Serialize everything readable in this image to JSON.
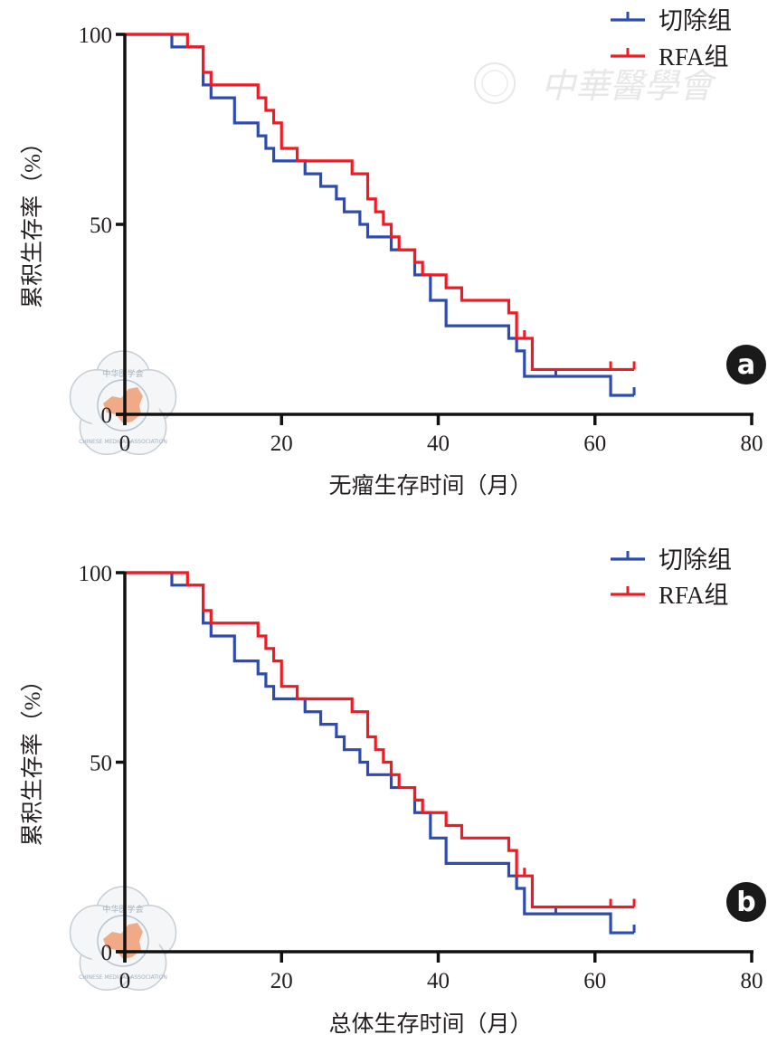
{
  "watermark": {
    "text": "中華醫學會",
    "seal_text_cn": "中华医学会",
    "seal_text_en": "CHINESE MEDICAL ASSOCIATION"
  },
  "colors": {
    "resection": "#2e4bb0",
    "rfa": "#ed1c24",
    "axis": "#111111",
    "badge": "#1a1a1a",
    "seal_map": "#f0a27a"
  },
  "chart_data": [
    {
      "type": "line",
      "subtype": "kaplan-meier",
      "panel_label": "a",
      "title": "",
      "xlabel": "无瘤生存时间（月）",
      "ylabel": "累积生存率（%）",
      "xlim": [
        0,
        80
      ],
      "ylim": [
        0,
        100
      ],
      "xticks": [
        0,
        20,
        40,
        60,
        80
      ],
      "xtick_labels": [
        "0",
        "20",
        "40",
        "60",
        "80"
      ],
      "yticks": [
        0,
        50,
        100
      ],
      "ytick_labels": [
        "0",
        "50",
        "100"
      ],
      "grid": false,
      "legend_position": "top-right",
      "series": [
        {
          "name": "切除组",
          "color": "#2e4bb0",
          "steps": [
            [
              0,
              100
            ],
            [
              6,
              96.7
            ],
            [
              10,
              86.7
            ],
            [
              11,
              83.3
            ],
            [
              14,
              76.7
            ],
            [
              17,
              73.3
            ],
            [
              18,
              70
            ],
            [
              19,
              66.7
            ],
            [
              23,
              63.3
            ],
            [
              25,
              60
            ],
            [
              27,
              56.7
            ],
            [
              28,
              53.3
            ],
            [
              30,
              50
            ],
            [
              31,
              46.7
            ],
            [
              34,
              43.3
            ],
            [
              37,
              36.7
            ],
            [
              39,
              30
            ],
            [
              41,
              23.3
            ],
            [
              49,
              20
            ],
            [
              50,
              16.7
            ],
            [
              51,
              10
            ],
            [
              62,
              5
            ]
          ],
          "end_time": 65,
          "censored": [
            55,
            65
          ]
        },
        {
          "name": "RFA组",
          "color": "#ed1c24",
          "steps": [
            [
              0,
              100
            ],
            [
              8,
              96.7
            ],
            [
              10,
              90
            ],
            [
              11,
              86.7
            ],
            [
              17,
              83.3
            ],
            [
              18,
              80
            ],
            [
              19,
              76.7
            ],
            [
              20,
              70
            ],
            [
              22,
              66.7
            ],
            [
              29,
              63.3
            ],
            [
              31,
              56.7
            ],
            [
              32,
              53.3
            ],
            [
              33,
              50
            ],
            [
              34,
              46.7
            ],
            [
              35,
              43.3
            ],
            [
              37,
              40
            ],
            [
              38,
              36.7
            ],
            [
              41,
              33.3
            ],
            [
              43,
              30
            ],
            [
              49,
              26.7
            ],
            [
              50,
              20
            ],
            [
              52,
              11.8
            ]
          ],
          "end_time": 65,
          "censored": [
            51,
            62,
            65
          ]
        }
      ]
    },
    {
      "type": "line",
      "subtype": "kaplan-meier",
      "panel_label": "b",
      "title": "",
      "xlabel": "总体生存时间（月）",
      "ylabel": "累积生存率（%）",
      "xlim": [
        0,
        80
      ],
      "ylim": [
        0,
        100
      ],
      "xticks": [
        0,
        20,
        40,
        60,
        80
      ],
      "xtick_labels": [
        "0",
        "20",
        "40",
        "60",
        "80"
      ],
      "yticks": [
        0,
        50,
        100
      ],
      "ytick_labels": [
        "0",
        "50",
        "100"
      ],
      "grid": false,
      "legend_position": "top-right",
      "series": [
        {
          "name": "切除组",
          "color": "#2e4bb0",
          "steps": [
            [
              0,
              100
            ],
            [
              6,
              96.7
            ],
            [
              10,
              86.7
            ],
            [
              11,
              83.3
            ],
            [
              14,
              76.7
            ],
            [
              17,
              73.3
            ],
            [
              18,
              70
            ],
            [
              19,
              66.7
            ],
            [
              23,
              63.3
            ],
            [
              25,
              60
            ],
            [
              27,
              56.7
            ],
            [
              28,
              53.3
            ],
            [
              30,
              50
            ],
            [
              31,
              46.7
            ],
            [
              34,
              43.3
            ],
            [
              37,
              36.7
            ],
            [
              39,
              30
            ],
            [
              41,
              23.3
            ],
            [
              49,
              20
            ],
            [
              50,
              16.7
            ],
            [
              51,
              10
            ],
            [
              62,
              5
            ]
          ],
          "end_time": 65,
          "censored": [
            55,
            65
          ]
        },
        {
          "name": "RFA组",
          "color": "#ed1c24",
          "steps": [
            [
              0,
              100
            ],
            [
              8,
              96.7
            ],
            [
              10,
              90
            ],
            [
              11,
              86.7
            ],
            [
              17,
              83.3
            ],
            [
              18,
              80
            ],
            [
              19,
              76.7
            ],
            [
              20,
              70
            ],
            [
              22,
              66.7
            ],
            [
              29,
              63.3
            ],
            [
              31,
              56.7
            ],
            [
              32,
              53.3
            ],
            [
              33,
              50
            ],
            [
              34,
              46.7
            ],
            [
              35,
              43.3
            ],
            [
              37,
              40
            ],
            [
              38,
              36.7
            ],
            [
              41,
              33.3
            ],
            [
              43,
              30
            ],
            [
              49,
              26.7
            ],
            [
              50,
              20
            ],
            [
              52,
              11.8
            ]
          ],
          "end_time": 65,
          "censored": [
            51,
            62,
            65
          ]
        }
      ]
    }
  ]
}
